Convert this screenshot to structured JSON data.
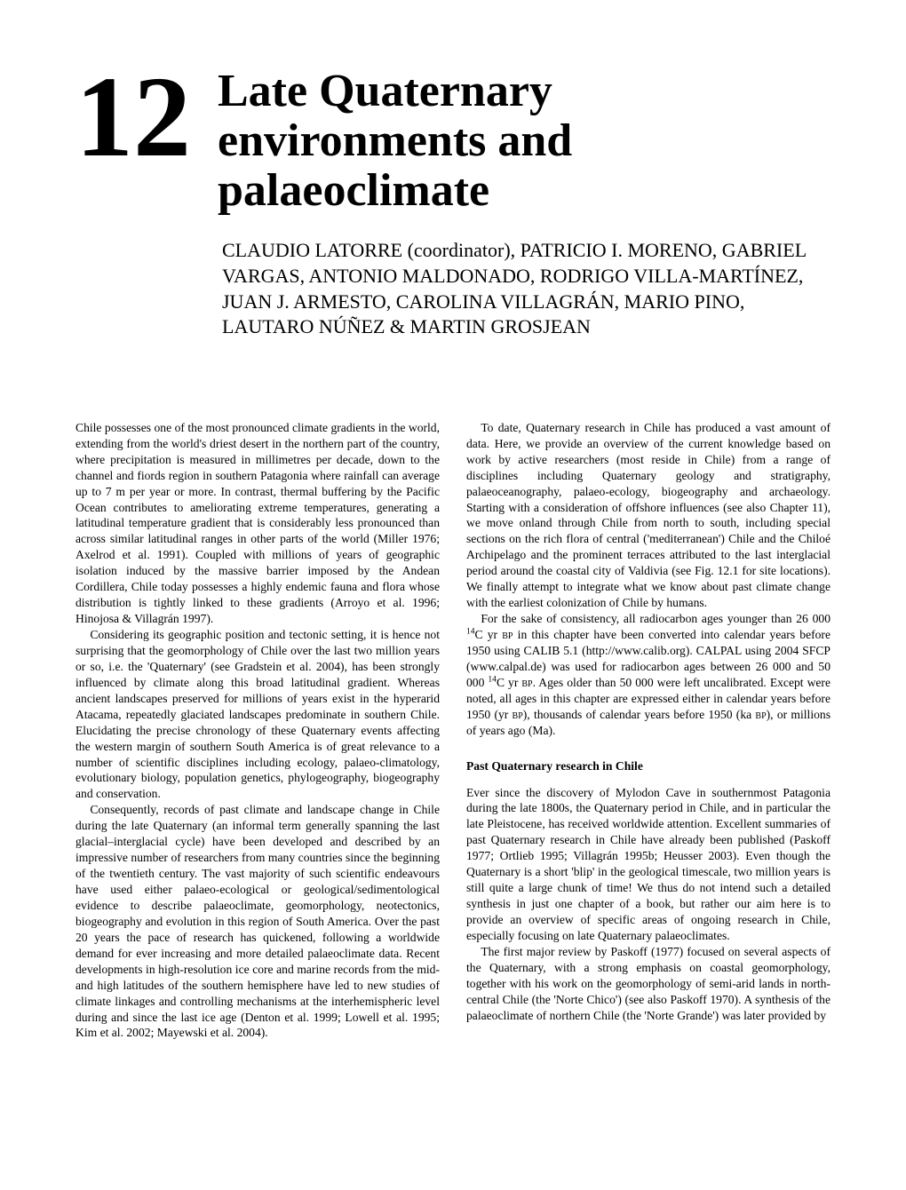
{
  "chapter": {
    "number": "12",
    "title_line1": "Late Quaternary",
    "title_line2": "environments and",
    "title_line3": "palaeoclimate"
  },
  "authors": "CLAUDIO LATORRE (coordinator), PATRICIO I. MORENO, GABRIEL VARGAS, ANTONIO MALDONADO, RODRIGO VILLA-MARTÍNEZ, JUAN J. ARMESTO, CAROLINA VILLAGRÁN, MARIO PINO, LAUTARO NÚÑEZ & MARTIN GROSJEAN",
  "left_column": {
    "p1": "Chile possesses one of the most pronounced climate gradients in the world, extending from the world's driest desert in the northern part of the country, where precipitation is measured in millimetres per decade, down to the channel and fiords region in southern Patagonia where rainfall can average up to 7 m per year or more. In contrast, thermal buffering by the Pacific Ocean contributes to ameliorating extreme temperatures, generating a latitudinal temperature gradient that is considerably less pronounced than across similar latitudinal ranges in other parts of the world (Miller 1976; Axelrod et al. 1991). Coupled with millions of years of geographic isolation induced by the massive barrier imposed by the Andean Cordillera, Chile today possesses a highly endemic fauna and flora whose distribution is tightly linked to these gradients (Arroyo et al. 1996; Hinojosa & Villagrán 1997).",
    "p2": "Considering its geographic position and tectonic setting, it is hence not surprising that the geomorphology of Chile over the last two million years or so, i.e. the 'Quaternary' (see Gradstein et al. 2004), has been strongly influenced by climate along this broad latitudinal gradient. Whereas ancient landscapes preserved for millions of years exist in the hyperarid Atacama, repeatedly glaciated landscapes predominate in southern Chile. Elucidating the precise chronology of these Quaternary events affecting the western margin of southern South America is of great relevance to a number of scientific disciplines including ecology, palaeo-climatology, evolutionary biology, population genetics, phylogeography, biogeography and conservation.",
    "p3": "Consequently, records of past climate and landscape change in Chile during the late Quaternary (an informal term generally spanning the last glacial–interglacial cycle) have been developed and described by an impressive number of researchers from many countries since the beginning of the twentieth century. The vast majority of such scientific endeavours have used either palaeo-ecological or geological/sedimentological evidence to describe palaeoclimate, geomorphology, neotectonics, biogeography and evolution in this region of South America. Over the past 20 years the pace of research has quickened, following a worldwide demand for ever increasing and more detailed palaeoclimate data. Recent developments in high-resolution ice core and marine records from the mid- and high latitudes of the southern hemisphere have led to new studies of climate linkages and controlling mechanisms at the interhemispheric level during and since the last ice age (Denton et al. 1999; Lowell et al. 1995; Kim et al. 2002; Mayewski et al. 2004)."
  },
  "right_column": {
    "p1": "To date, Quaternary research in Chile has produced a vast amount of data. Here, we provide an overview of the current knowledge based on work by active researchers (most reside in Chile) from a range of disciplines including Quaternary geology and stratigraphy, palaeoceanography, palaeo-ecology, biogeography and archaeology. Starting with a consideration of offshore influences (see also Chapter 11), we move onland through Chile from north to south, including special sections on the rich flora of central ('mediterranean') Chile and the Chiloé Archipelago and the prominent terraces attributed to the last interglacial period around the coastal city of Valdivia (see Fig. 12.1 for site locations). We finally attempt to integrate what we know about past climate change with the earliest colonization of Chile by humans.",
    "p2_prefix": "For the sake of consistency, all radiocarbon ages younger than 26 000 ",
    "p2_sup1": "14",
    "p2_mid1": "C yr ",
    "p2_bp1": "bp",
    "p2_mid2": " in this chapter have been converted into calendar years before 1950 using CALIB 5.1 (http://www.calib.org). CALPAL using 2004 SFCP (www.calpal.de) was used for radiocarbon ages between 26 000 and 50 000 ",
    "p2_sup2": "14",
    "p2_mid3": "C yr ",
    "p2_bp2": "bp",
    "p2_mid4": ". Ages older than 50 000 were left uncalibrated. Except were noted, all ages in this chapter are expressed either in calendar years before 1950 (yr ",
    "p2_bp3": "bp",
    "p2_mid5": "), thousands of calendar years before 1950 (ka ",
    "p2_bp4": "bp",
    "p2_suffix": "), or millions of years ago (Ma).",
    "heading": "Past Quaternary research in Chile",
    "p3": "Ever since the discovery of Mylodon Cave in southernmost Patagonia during the late 1800s, the Quaternary period in Chile, and in particular the late Pleistocene, has received worldwide attention. Excellent summaries of past Quaternary research in Chile have already been published (Paskoff 1977; Ortlieb 1995; Villagrán 1995b; Heusser 2003). Even though the Quaternary is a short 'blip' in the geological timescale, two million years is still quite a large chunk of time! We thus do not intend such a detailed synthesis in just one chapter of a book, but rather our aim here is to provide an overview of specific areas of ongoing research in Chile, especially focusing on late Quaternary palaeoclimates.",
    "p4": "The first major review by Paskoff (1977) focused on several aspects of the Quaternary, with a strong emphasis on coastal geomorphology, together with his work on the geomorphology of semi-arid lands in north-central Chile (the 'Norte Chico') (see also Paskoff 1970). A synthesis of the palaeoclimate of northern Chile (the 'Norte Grande') was later provided by"
  },
  "style": {
    "background_color": "#ffffff",
    "text_color": "#000000",
    "chapter_number_fontsize": 130,
    "chapter_title_fontsize": 52,
    "authors_fontsize": 22,
    "body_fontsize": 13.6,
    "body_lineheight": 1.32,
    "font_family": "Times New Roman"
  }
}
